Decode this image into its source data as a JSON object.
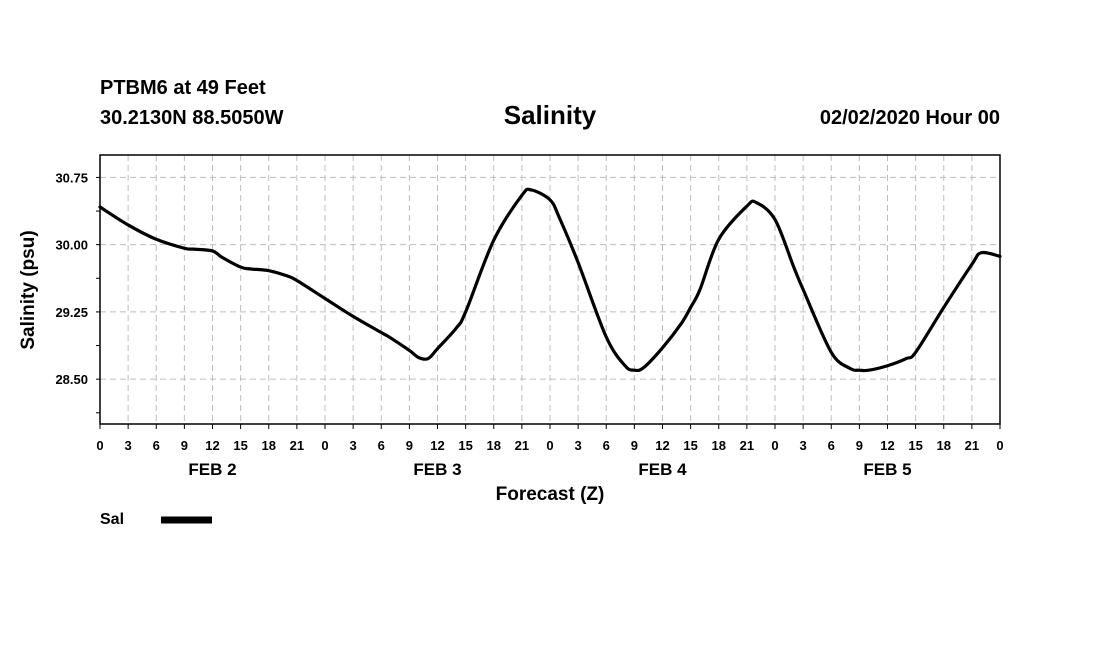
{
  "header": {
    "station": "PTBM6 at 49 Feet",
    "coords": "30.2130N 88.5050W",
    "datetime": "02/02/2020 Hour 00"
  },
  "legend": {
    "label": "Sal"
  },
  "chart_data": {
    "type": "line",
    "title": "Salinity",
    "xlabel": "Forecast (Z)",
    "ylabel": "Salinity (psu)",
    "ylim": [
      28.0,
      31.0
    ],
    "yticks": [
      28.5,
      29.25,
      30.0,
      30.75
    ],
    "ytick_labels": [
      "28.50",
      "29.25",
      "30.00",
      "30.75"
    ],
    "xlim": [
      0,
      96
    ],
    "xticks": [
      0,
      3,
      6,
      9,
      12,
      15,
      18,
      21,
      24,
      27,
      30,
      33,
      36,
      39,
      42,
      45,
      48,
      51,
      54,
      57,
      60,
      63,
      66,
      69,
      72,
      75,
      78,
      81,
      84,
      87,
      90,
      93,
      96
    ],
    "xtick_labels": [
      "0",
      "3",
      "6",
      "9",
      "12",
      "15",
      "18",
      "21",
      "0",
      "3",
      "6",
      "9",
      "12",
      "15",
      "18",
      "21",
      "0",
      "3",
      "6",
      "9",
      "12",
      "15",
      "18",
      "21",
      "0",
      "3",
      "6",
      "9",
      "12",
      "15",
      "18",
      "21",
      "0"
    ],
    "day_labels": [
      {
        "hour": 12,
        "label": "FEB 2"
      },
      {
        "hour": 36,
        "label": "FEB 3"
      },
      {
        "hour": 60,
        "label": "FEB 4"
      },
      {
        "hour": 84,
        "label": "FEB 5"
      }
    ],
    "grid": true,
    "series": [
      {
        "name": "Sal",
        "color": "#000000",
        "x": [
          0,
          3,
          6,
          9,
          10,
          12,
          13,
          15,
          16,
          18,
          20,
          21,
          24,
          27,
          30,
          31,
          33,
          34,
          35,
          36,
          38,
          39,
          42,
          45,
          46,
          48,
          49,
          51,
          54,
          56,
          57,
          58,
          60,
          62,
          63,
          64,
          66,
          69,
          70,
          72,
          74,
          75,
          78,
          80,
          81,
          82,
          84,
          86,
          87,
          90,
          93,
          94,
          96
        ],
        "y": [
          30.42,
          30.22,
          30.06,
          29.96,
          29.95,
          29.93,
          29.86,
          29.75,
          29.73,
          29.71,
          29.65,
          29.6,
          29.4,
          29.2,
          29.02,
          28.96,
          28.82,
          28.74,
          28.73,
          28.84,
          29.07,
          29.25,
          30.05,
          30.55,
          30.61,
          30.5,
          30.3,
          29.8,
          28.97,
          28.65,
          28.6,
          28.63,
          28.85,
          29.12,
          29.3,
          29.5,
          30.06,
          30.43,
          30.47,
          30.28,
          29.75,
          29.5,
          28.8,
          28.62,
          28.6,
          28.6,
          28.65,
          28.73,
          28.8,
          29.3,
          29.78,
          29.91,
          29.87
        ]
      }
    ]
  }
}
